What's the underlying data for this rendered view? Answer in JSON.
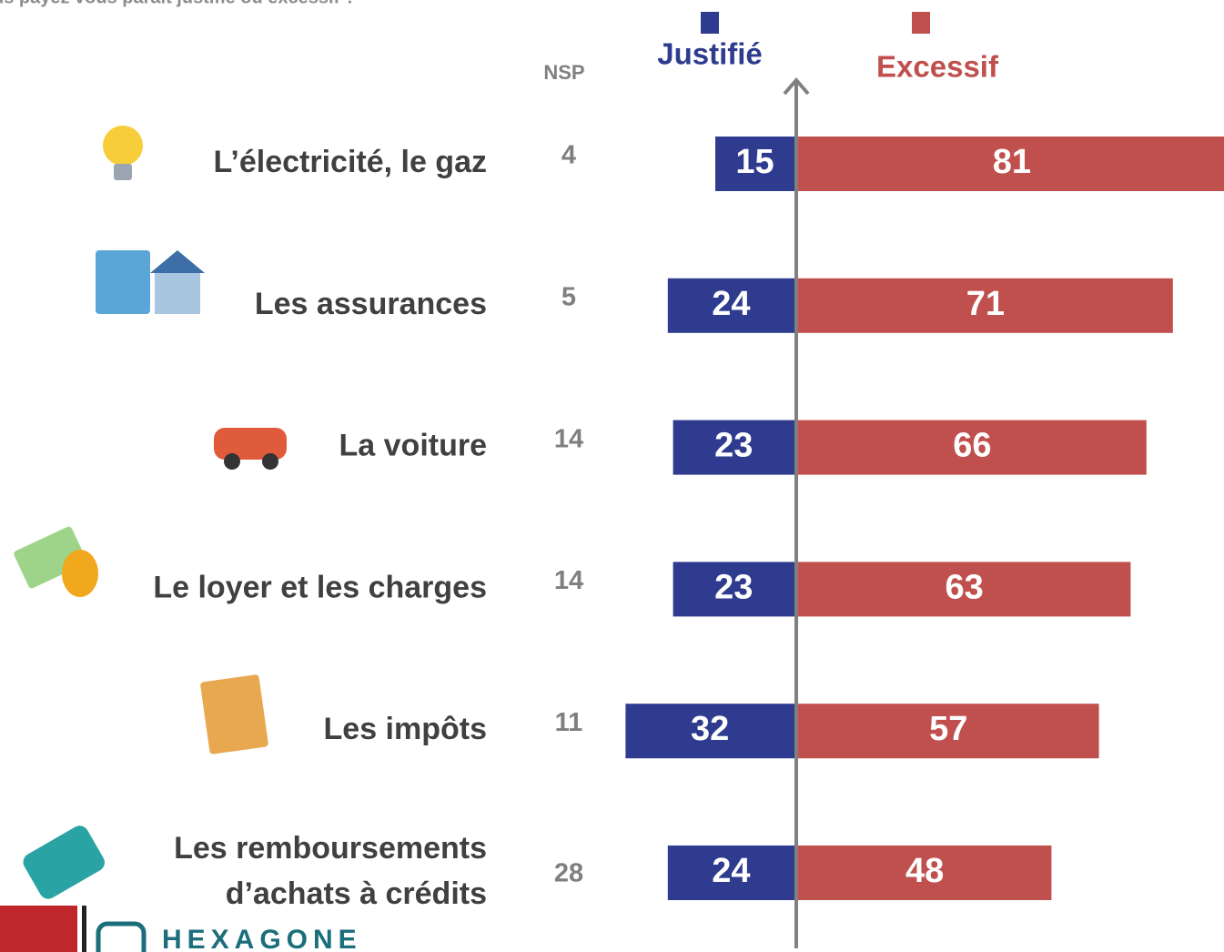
{
  "chart_data": {
    "type": "diverging-bar",
    "title": "us payez vous paraît justifié ou excessif ?",
    "categories": [
      "L’électricité, le gaz",
      "Les assurances",
      "La voiture",
      "Le loyer et les charges",
      "Les impôts",
      "Les remboursements\nd’achats à crédits"
    ],
    "series": [
      {
        "name": "Justifié",
        "color": "#2e3b8e",
        "values": [
          15,
          24,
          23,
          23,
          32,
          24
        ]
      },
      {
        "name": "Excessif",
        "color": "#c0504d",
        "values": [
          81,
          71,
          66,
          63,
          57,
          48
        ]
      },
      {
        "name": "NSP",
        "color": "#7f7f7f",
        "values": [
          4,
          5,
          14,
          14,
          11,
          28
        ]
      }
    ]
  },
  "footer": {
    "brand": "HEXAGONE"
  }
}
